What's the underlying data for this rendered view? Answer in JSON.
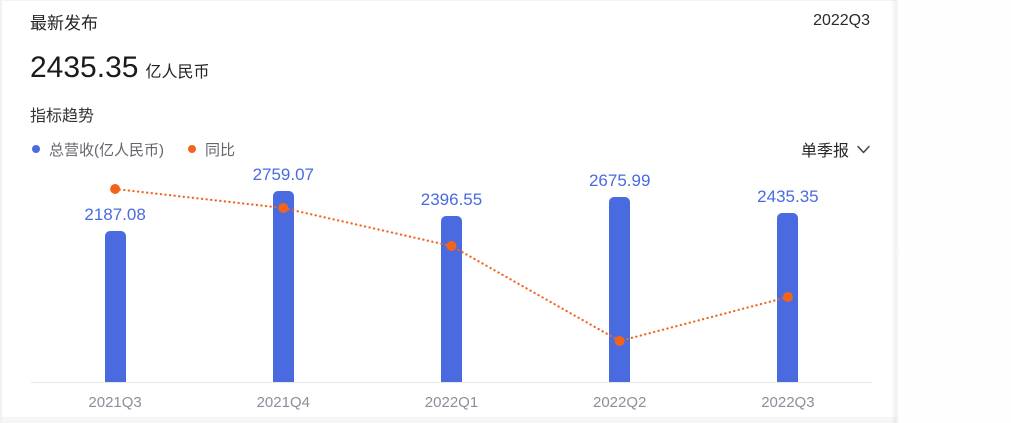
{
  "card": {
    "title": "最新发布",
    "period": "2022Q3",
    "headline": {
      "value": "2435.35",
      "unit": "亿人民币"
    },
    "section_title": "指标趋势",
    "legend": [
      {
        "label": "总营收(亿人民币)",
        "color": "#4a6be0",
        "marker": "dot"
      },
      {
        "label": "同比",
        "color": "#f2641c",
        "marker": "dot"
      }
    ],
    "dropdown": {
      "label": "单季报",
      "icon": "chevron-down-icon"
    }
  },
  "colors": {
    "bar": "#4a6be0",
    "bar_label": "#4a6be0",
    "line": "#f2641c",
    "axis": "#e8e8e8",
    "xlabel": "#8a8f99"
  },
  "chart_data": {
    "type": "bar",
    "title": "指标趋势",
    "categories": [
      "2021Q3",
      "2021Q4",
      "2022Q1",
      "2022Q2",
      "2022Q3"
    ],
    "series": [
      {
        "name": "总营收(亿人民币)",
        "type": "bar",
        "color": "#4a6be0",
        "values": [
          2187.08,
          2759.07,
          2396.55,
          2675.99,
          2435.35
        ],
        "data_labels": [
          "2187.08",
          "2759.07",
          "2396.55",
          "2675.99",
          "2435.35"
        ]
      },
      {
        "name": "同比",
        "type": "line",
        "line_style": "dotted",
        "color": "#f2641c",
        "values_labeled": false,
        "point_y_fractions": [
          0.085,
          0.175,
          0.355,
          0.806,
          0.597
        ]
      }
    ],
    "xlabel": "",
    "ylabel": "",
    "grid": false,
    "legend_position": "top-left",
    "baseline": 0,
    "max_bar_fraction": 0.905
  }
}
